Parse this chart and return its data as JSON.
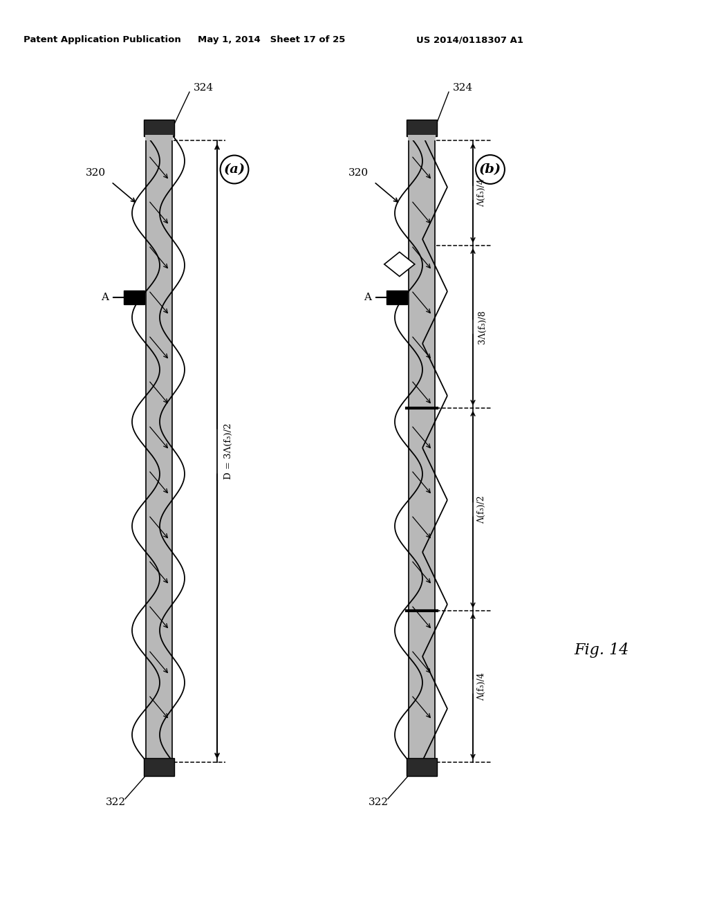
{
  "header_left": "Patent Application Publication",
  "header_mid": "May 1, 2014   Sheet 17 of 25",
  "header_right": "US 2014/0118307 A1",
  "fig_label": "Fig. 14",
  "panel_a_label": "(a)",
  "panel_b_label": "(b)",
  "label_324": "324",
  "label_320": "320",
  "label_322": "322",
  "label_A": "A",
  "dim_D": "D = 3Λ(f₃)/2",
  "dim_lambda_half": "Λ(f₃)/2",
  "dim_lambda_quarter": "Λ(f₃)/4",
  "dim_3lambda_eighth": "3Λ(f₃)/8",
  "background": "#ffffff",
  "gray_fill": "#b8b8b8",
  "dark_fill": "#2a2a2a"
}
